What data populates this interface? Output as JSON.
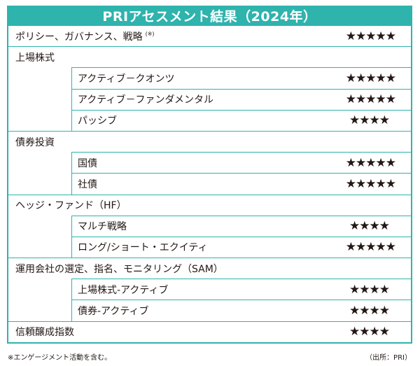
{
  "title": "PRIアセスメント結果（2024年）",
  "rows": [
    {
      "label": "ポリシー、ガバナンス、戦略",
      "note": "(※)",
      "stars": "★★★★★"
    },
    {
      "label": "上場株式",
      "stars": ""
    },
    {
      "label": "アクティブ－クオンツ",
      "stars": "★★★★★"
    },
    {
      "label": "アクティブ－ファンダメンタル",
      "stars": "★★★★★"
    },
    {
      "label": "パッシブ",
      "stars": "★★★★"
    },
    {
      "label": "債券投資",
      "stars": ""
    },
    {
      "label": "国債",
      "stars": "★★★★★"
    },
    {
      "label": "社債",
      "stars": "★★★★★"
    },
    {
      "label": "ヘッジ・ファンド（HF）",
      "stars": ""
    },
    {
      "label": "マルチ戦略",
      "stars": "★★★★"
    },
    {
      "label": "ロング/ショート・エクイティ",
      "stars": "★★★★★"
    },
    {
      "label": "運用会社の選定、指名、モニタリング（SAM）",
      "stars": ""
    },
    {
      "label": "上場株式-アクティブ",
      "stars": "★★★★"
    },
    {
      "label": "債券-アクティブ",
      "stars": "★★★★"
    },
    {
      "label": "信頼醸成指数",
      "stars": "★★★★"
    }
  ],
  "footnote": "※エンゲージメント活動を含む。",
  "source": "（出所：PRI）"
}
